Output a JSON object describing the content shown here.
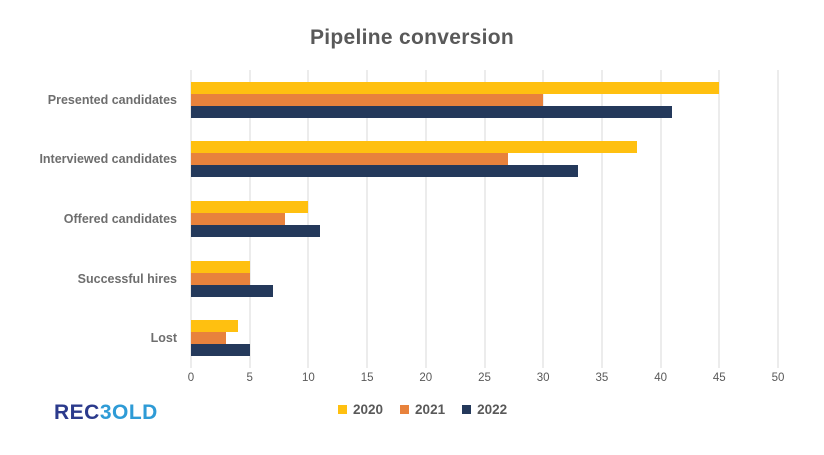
{
  "title": "Pipeline conversion",
  "logo": {
    "part1": "REC",
    "part2": "3OLD",
    "part1_color": "#2B3A8C",
    "part2_color": "#2E9BD6"
  },
  "colors": {
    "gridline": "#D9D9D9",
    "title_text": "#595959",
    "category_text": "#6E6E6E",
    "tick_text": "#595959",
    "background": "#FFFFFF"
  },
  "chart_data": {
    "type": "bar",
    "orientation": "horizontal",
    "title": "Pipeline conversion",
    "xlabel": "",
    "ylabel": "",
    "xlim": [
      0,
      50
    ],
    "x_ticks": [
      0,
      5,
      10,
      15,
      20,
      25,
      30,
      35,
      40,
      45,
      50
    ],
    "grid": true,
    "legend_position": "bottom",
    "categories": [
      "Presented candidates",
      "Interviewed candidates",
      "Offered candidates",
      "Successful hires",
      "Lost"
    ],
    "series": [
      {
        "name": "2020",
        "color": "#FFC010",
        "values": [
          45,
          38,
          10,
          5,
          4
        ]
      },
      {
        "name": "2021",
        "color": "#E8823C",
        "values": [
          30,
          27,
          8,
          5,
          3
        ]
      },
      {
        "name": "2022",
        "color": "#24395B",
        "values": [
          41,
          33,
          11,
          7,
          5
        ]
      }
    ]
  }
}
